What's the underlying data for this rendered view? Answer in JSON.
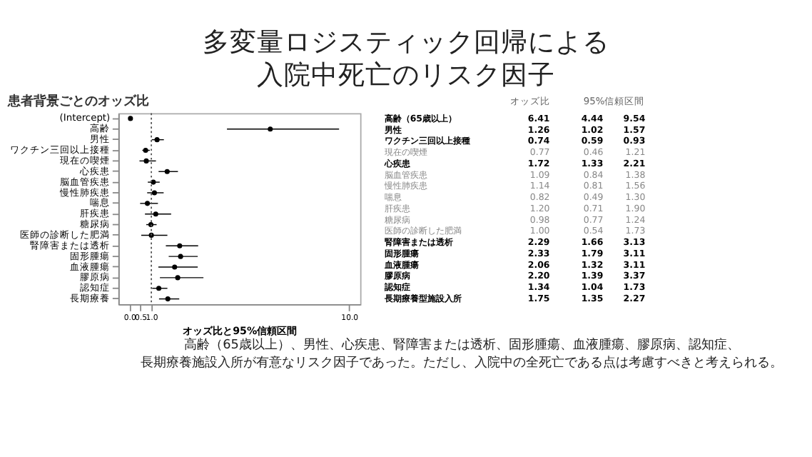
{
  "chart_data": [
    {
      "type": "scatter",
      "orientation": "horizontal",
      "title": "多変量ロジスティック回帰による入院中死亡のリスク因子",
      "subtitle": "患者背景ごとのオッズ比",
      "xlabel": "オッズ比と95%信頼区間",
      "categories": [
        "(Intercept)",
        "高齢",
        "男性",
        "ワクチン三回以上接種",
        "現在の喫煙",
        "心疾患",
        "脳血管疾患",
        "慢性肺疾患",
        "喘息",
        "肝疾患",
        "糖尿病",
        "医師の診断した肥満",
        "腎障害または透析",
        "固形腫瘍",
        "血液腫瘍",
        "膠原病",
        "認知症",
        "長期療養"
      ],
      "values": [
        0.05,
        6.41,
        1.26,
        0.74,
        0.77,
        1.72,
        1.09,
        1.14,
        0.82,
        1.2,
        0.98,
        1.0,
        2.29,
        2.33,
        2.06,
        2.2,
        1.34,
        1.75
      ],
      "errors": [
        null,
        [
          4.44,
          9.54
        ],
        [
          1.02,
          1.57
        ],
        [
          0.59,
          0.93
        ],
        [
          0.46,
          1.21
        ],
        [
          1.33,
          2.21
        ],
        [
          0.84,
          1.38
        ],
        [
          0.81,
          1.56
        ],
        [
          0.49,
          1.3
        ],
        [
          0.71,
          1.9
        ],
        [
          0.77,
          1.24
        ],
        [
          0.54,
          1.73
        ],
        [
          1.66,
          3.13
        ],
        [
          1.79,
          3.11
        ],
        [
          1.32,
          3.11
        ],
        [
          1.39,
          3.37
        ],
        [
          1.04,
          1.73
        ],
        [
          1.35,
          2.27
        ]
      ],
      "color": "#000000",
      "marker": "circle",
      "xlim": [
        -0.5,
        10.5
      ],
      "xticks": [
        {
          "value": 0,
          "label": "0.0"
        },
        {
          "value": 0.5,
          "label": "0.5"
        },
        {
          "value": 1,
          "label": "1.0"
        },
        {
          "value": 10,
          "label": "10.0"
        }
      ],
      "ref_lines": [
        {
          "axis": "x",
          "value": 1,
          "line_style": "dotted",
          "color": "#555555"
        }
      ],
      "annotations": [
        "高齢（65歳以上）、男性、心疾患、腎障害または透析、固形腫瘍、血液腫瘍、膠原病、認知症、",
        "長期療養施設入所が有意なリスク因子であった。ただし、入院中の全死亡である点は考慮すべきと考えられる。"
      ]
    },
    {
      "type": "other",
      "categories": [
        "高齢（65歳以上）",
        "男性",
        "ワクチン三回以上接種",
        "現在の喫煙",
        "心疾患",
        "脳血管疾患",
        "慢性肺疾患",
        "喘息",
        "肝疾患",
        "糖尿病",
        "医師の診断した肥満",
        "腎障害または透析",
        "固形腫瘍",
        "血液腫瘍",
        "膠原病",
        "認知症",
        "長期療養型施設入所"
      ],
      "series": [
        {
          "name": "オッズ比",
          "values": [
            6.41,
            1.26,
            0.74,
            0.77,
            1.72,
            1.09,
            1.14,
            0.82,
            1.2,
            0.98,
            1.0,
            2.29,
            2.33,
            2.06,
            2.2,
            1.34,
            1.75
          ],
          "value_labels": [
            "6.41",
            "1.26",
            "0.74",
            "0.77",
            "1.72",
            "1.09",
            "1.14",
            "0.82",
            "1.20",
            "0.98",
            "1.00",
            "2.29",
            "2.33",
            "2.06",
            "2.20",
            "1.34",
            "1.75"
          ]
        },
        {
          "name": "95%信頼区間",
          "values": [
            4.44,
            1.02,
            0.59,
            0.46,
            1.33,
            0.84,
            0.81,
            0.49,
            0.71,
            0.77,
            0.54,
            1.66,
            1.79,
            1.32,
            1.39,
            1.04,
            1.35
          ],
          "value_labels": [
            "4.44",
            "1.02",
            "0.59",
            "0.46",
            "1.33",
            "0.84",
            "0.81",
            "0.49",
            "0.71",
            "0.77",
            "0.54",
            "1.66",
            "1.79",
            "1.32",
            "1.39",
            "1.04",
            "1.35"
          ]
        },
        {
          "values": [
            9.54,
            1.57,
            0.93,
            1.21,
            2.21,
            1.38,
            1.56,
            1.3,
            1.9,
            1.24,
            1.73,
            3.13,
            3.11,
            3.11,
            3.37,
            1.73,
            2.27
          ],
          "value_labels": [
            "9.54",
            "1.57",
            "0.93",
            "1.21",
            "2.21",
            "1.38",
            "1.56",
            "1.30",
            "1.90",
            "1.24",
            "1.73",
            "3.13",
            "3.11",
            "3.11",
            "3.37",
            "1.73",
            "2.27"
          ]
        }
      ]
    }
  ]
}
